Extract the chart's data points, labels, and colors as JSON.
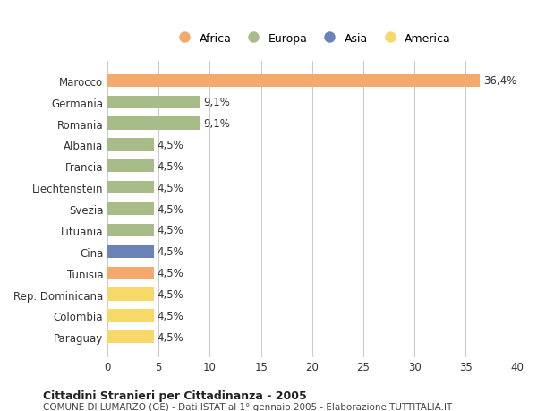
{
  "countries": [
    "Marocco",
    "Germania",
    "Romania",
    "Albania",
    "Francia",
    "Liechtenstein",
    "Svezia",
    "Lituania",
    "Cina",
    "Tunisia",
    "Rep. Dominicana",
    "Colombia",
    "Paraguay"
  ],
  "values": [
    36.4,
    9.1,
    9.1,
    4.5,
    4.5,
    4.5,
    4.5,
    4.5,
    4.5,
    4.5,
    4.5,
    4.5,
    4.5
  ],
  "labels": [
    "36,4%",
    "9,1%",
    "9,1%",
    "4,5%",
    "4,5%",
    "4,5%",
    "4,5%",
    "4,5%",
    "4,5%",
    "4,5%",
    "4,5%",
    "4,5%",
    "4,5%"
  ],
  "colors": [
    "#F4A96D",
    "#A8BC8A",
    "#A8BC8A",
    "#A8BC8A",
    "#A8BC8A",
    "#A8BC8A",
    "#A8BC8A",
    "#A8BC8A",
    "#6B84B8",
    "#F4A96D",
    "#F7D96A",
    "#F7D96A",
    "#F7D96A"
  ],
  "categories": [
    "Africa",
    "Europa",
    "Asia",
    "America"
  ],
  "legend_colors": [
    "#F4A96D",
    "#A8BC8A",
    "#6B84B8",
    "#F7D96A"
  ],
  "xlim": [
    0,
    40
  ],
  "xticks": [
    0,
    5,
    10,
    15,
    20,
    25,
    30,
    35,
    40
  ],
  "title_main": "Cittadini Stranieri per Cittadinanza - 2005",
  "title_sub": "COMUNE DI LUMARZO (GE) - Dati ISTAT al 1° gennaio 2005 - Elaborazione TUTTITALIA.IT",
  "bg_color": "#FFFFFF",
  "grid_color": "#CCCCCC",
  "bar_height": 0.6,
  "label_fontsize": 8.5,
  "tick_fontsize": 8.5
}
